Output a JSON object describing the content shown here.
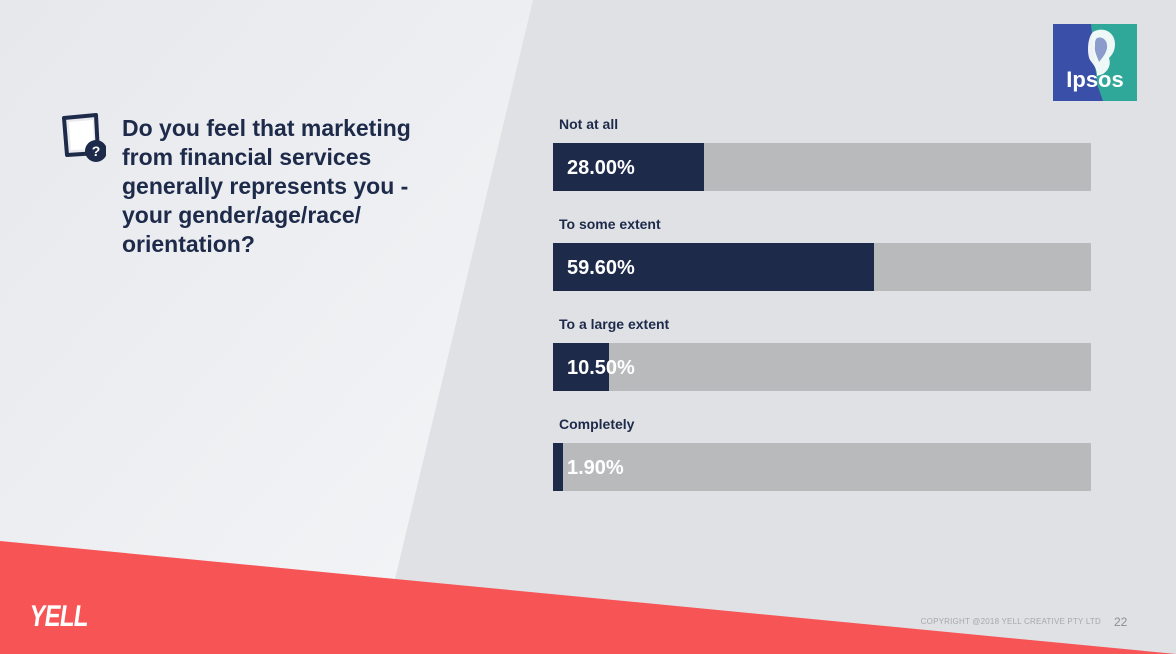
{
  "question": "Do you feel that marketing from financial services generally represents you - your gender/age/race/ orientation?",
  "logos": {
    "ipsos": "Ipsos",
    "yell": "YELL"
  },
  "footer": {
    "copyright": "COPYRIGHT @2018 YELL CREATIVE PTY LTD",
    "page_number": "22"
  },
  "colors": {
    "bar_fill": "#1e2a4a",
    "bar_track": "#b9babc",
    "accent_red": "#f75456",
    "background": "#dfe1e5",
    "ipsos_blue": "#3a4fa8",
    "ipsos_teal": "#2fa89a"
  },
  "icons": [
    "question-card-icon",
    "ipsos-head-icon"
  ],
  "chart_data": {
    "type": "bar",
    "orientation": "horizontal",
    "categories": [
      "Not at all",
      "To some extent",
      "To a large extent",
      "Completely"
    ],
    "values": [
      28.0,
      59.6,
      10.5,
      1.9
    ],
    "value_labels": [
      "28.00%",
      "59.60%",
      "10.50%",
      "1.90%"
    ],
    "xlim": [
      0,
      100
    ],
    "unit": "%",
    "grid": false,
    "legend": "none"
  }
}
